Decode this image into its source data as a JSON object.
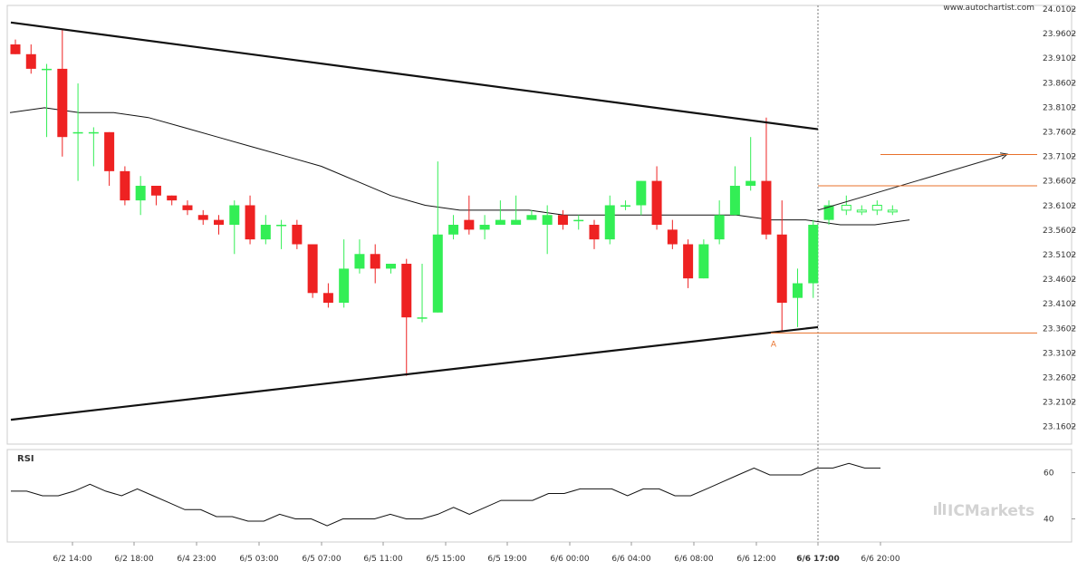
{
  "header": {
    "site": "www.autochartist.com"
  },
  "brand": {
    "name": "ICMarkets"
  },
  "colors": {
    "up": "#33ee55",
    "down": "#ee2222",
    "pattern": "#111111",
    "orange": "#e8702a",
    "ma": "#111111",
    "rsi": "#111111"
  },
  "chart_data": [
    {
      "type": "candlestick",
      "title": "",
      "ylim": [
        23.11,
        24.01
      ],
      "y_ticks": [
        "24.0102",
        "23.9602",
        "23.9102",
        "23.8602",
        "23.8102",
        "23.7602",
        "23.7102",
        "23.6602",
        "23.6102",
        "23.5602",
        "23.5102",
        "23.4602",
        "23.4102",
        "23.3602",
        "23.3102",
        "23.2602",
        "23.2102",
        "23.1602"
      ],
      "x_ticks": [
        "6/2 14:00",
        "6/2 18:00",
        "6/4 23:00",
        "6/5 03:00",
        "6/5 07:00",
        "6/5 11:00",
        "6/5 15:00",
        "6/5 19:00",
        "6/6 00:00",
        "6/6 04:00",
        "6/6 08:00",
        "6/6 12:00",
        "6/6 17:00",
        "6/6 20:00"
      ],
      "highlight_tick": "6/6 17:00",
      "candles": [
        [
          23.93,
          23.91,
          23.94,
          23.91
        ],
        [
          23.91,
          23.88,
          23.93,
          23.87
        ],
        [
          23.88,
          23.88,
          23.89,
          23.74
        ],
        [
          23.88,
          23.74,
          23.96,
          23.7
        ],
        [
          23.75,
          23.75,
          23.85,
          23.65
        ],
        [
          23.75,
          23.75,
          23.76,
          23.68
        ],
        [
          23.75,
          23.67,
          23.75,
          23.64
        ],
        [
          23.67,
          23.61,
          23.68,
          23.6
        ],
        [
          23.61,
          23.64,
          23.66,
          23.58
        ],
        [
          23.64,
          23.62,
          23.64,
          23.6
        ],
        [
          23.62,
          23.61,
          23.62,
          23.6
        ],
        [
          23.6,
          23.59,
          23.61,
          23.58
        ],
        [
          23.58,
          23.57,
          23.59,
          23.56
        ],
        [
          23.57,
          23.56,
          23.58,
          23.54
        ],
        [
          23.56,
          23.6,
          23.61,
          23.5
        ],
        [
          23.6,
          23.53,
          23.62,
          23.52
        ],
        [
          23.53,
          23.56,
          23.58,
          23.52
        ],
        [
          23.56,
          23.56,
          23.57,
          23.51
        ],
        [
          23.56,
          23.52,
          23.57,
          23.51
        ],
        [
          23.52,
          23.42,
          23.52,
          23.41
        ],
        [
          23.42,
          23.4,
          23.44,
          23.39
        ],
        [
          23.4,
          23.47,
          23.53,
          23.39
        ],
        [
          23.47,
          23.5,
          23.53,
          23.46
        ],
        [
          23.5,
          23.47,
          23.52,
          23.44
        ],
        [
          23.47,
          23.48,
          23.48,
          23.46
        ],
        [
          23.48,
          23.37,
          23.49,
          23.25
        ],
        [
          23.37,
          23.37,
          23.48,
          23.36
        ],
        [
          23.38,
          23.54,
          23.69,
          23.38
        ],
        [
          23.54,
          23.56,
          23.58,
          23.53
        ],
        [
          23.57,
          23.55,
          23.62,
          23.54
        ],
        [
          23.55,
          23.56,
          23.58,
          23.53
        ],
        [
          23.56,
          23.57,
          23.61,
          23.56
        ],
        [
          23.56,
          23.57,
          23.62,
          23.56
        ],
        [
          23.57,
          23.58,
          23.59,
          23.57
        ],
        [
          23.56,
          23.58,
          23.6,
          23.5
        ],
        [
          23.58,
          23.56,
          23.59,
          23.55
        ],
        [
          23.57,
          23.57,
          23.58,
          23.55
        ],
        [
          23.56,
          23.53,
          23.57,
          23.51
        ],
        [
          23.53,
          23.6,
          23.62,
          23.52
        ],
        [
          23.6,
          23.6,
          23.61,
          23.59
        ],
        [
          23.6,
          23.65,
          23.65,
          23.58
        ],
        [
          23.65,
          23.56,
          23.68,
          23.55
        ],
        [
          23.55,
          23.52,
          23.57,
          23.51
        ],
        [
          23.52,
          23.45,
          23.53,
          23.43
        ],
        [
          23.45,
          23.52,
          23.53,
          23.45
        ],
        [
          23.53,
          23.58,
          23.61,
          23.52
        ],
        [
          23.58,
          23.64,
          23.68,
          23.58
        ],
        [
          23.64,
          23.65,
          23.74,
          23.63
        ],
        [
          23.65,
          23.54,
          23.78,
          23.53
        ],
        [
          23.54,
          23.4,
          23.61,
          23.34
        ],
        [
          23.41,
          23.44,
          23.47,
          23.35
        ],
        [
          23.44,
          23.56,
          23.57,
          23.41
        ],
        [
          23.57,
          23.6,
          23.61,
          23.56
        ]
      ],
      "forecast_candles": [
        [
          23.59,
          23.6,
          23.62,
          23.58
        ],
        [
          23.59,
          23.59,
          23.6,
          23.58
        ],
        [
          23.59,
          23.6,
          23.61,
          23.58
        ],
        [
          23.59,
          23.59,
          23.6,
          23.58
        ]
      ],
      "moving_average": [
        23.79,
        23.8,
        23.79,
        23.79,
        23.78,
        23.76,
        23.74,
        23.72,
        23.7,
        23.68,
        23.65,
        23.62,
        23.6,
        23.59,
        23.59,
        23.59,
        23.58,
        23.58,
        23.58,
        23.58,
        23.58,
        23.58,
        23.57,
        23.57,
        23.56,
        23.56,
        23.57
      ],
      "pattern_lines": [
        {
          "from": [
            0,
            23.975
          ],
          "to": [
            52,
            23.756
          ]
        },
        {
          "from": [
            0,
            23.16
          ],
          "to": [
            52,
            23.35
          ]
        }
      ],
      "projection_arrow": {
        "from": [
          52,
          23.59
        ],
        "to": [
          63,
          23.705
        ]
      },
      "levels": [
        {
          "value": 23.704,
          "from": 56,
          "to": 67
        },
        {
          "value": 23.64,
          "from": 52,
          "to": 67
        },
        {
          "value": 23.338,
          "from": 49,
          "to": 67
        }
      ],
      "point_label": {
        "text": "A",
        "at": [
          49.5,
          23.33
        ]
      }
    },
    {
      "type": "line",
      "title": "RSI",
      "ylim": [
        30,
        70
      ],
      "y_ticks": [
        "60",
        "40"
      ],
      "values": [
        52,
        52,
        50,
        50,
        52,
        55,
        52,
        50,
        53,
        50,
        47,
        44,
        44,
        41,
        41,
        39,
        39,
        42,
        40,
        40,
        37,
        40,
        40,
        40,
        42,
        40,
        40,
        42,
        45,
        42,
        45,
        48,
        48,
        48,
        51,
        51,
        53,
        53,
        53,
        50,
        53,
        53,
        50,
        50,
        53,
        56,
        59,
        62,
        59,
        59,
        59,
        62,
        62,
        64,
        62,
        62
      ],
      "series_color": "#111111"
    }
  ]
}
